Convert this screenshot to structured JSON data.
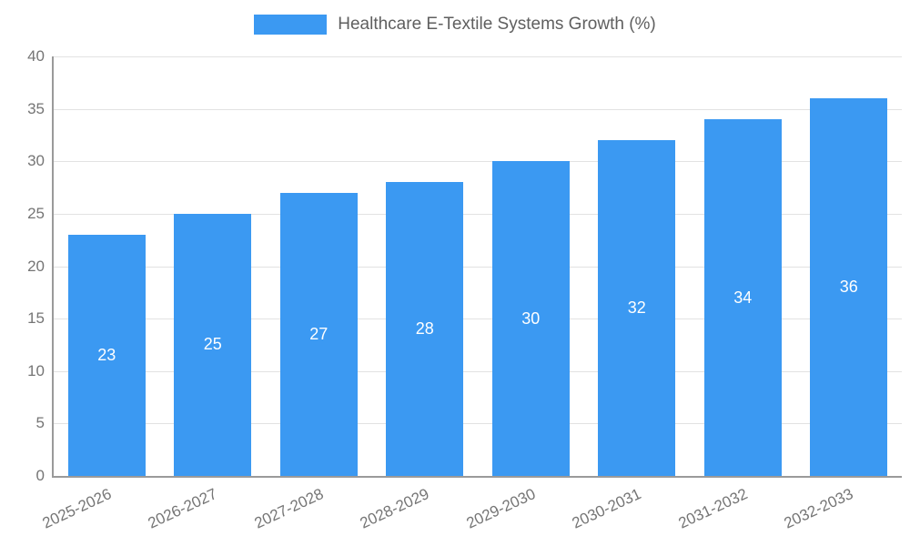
{
  "legend": {
    "title": "Healthcare E-Textile Systems Growth (%)"
  },
  "colors": {
    "bar": "#3b99f2",
    "grid": "#e2e2e2",
    "axis": "#9a9a9a",
    "tick_text": "#757575",
    "title_text": "#5f5f5f",
    "bar_label_text": "#ffffff"
  },
  "chart_data": {
    "type": "bar",
    "title": "Healthcare E-Textile Systems Growth (%)",
    "categories": [
      "2025-2026",
      "2026-2027",
      "2027-2028",
      "2028-2029",
      "2029-2030",
      "2030-2031",
      "2031-2032",
      "2032-2033"
    ],
    "values": [
      23,
      25,
      27,
      28,
      30,
      32,
      34,
      36
    ],
    "xlabel": "",
    "ylabel": "",
    "ylim": [
      0,
      40
    ],
    "ytick_step": 5,
    "ytick_labels": [
      "0",
      "5",
      "10",
      "15",
      "20",
      "25",
      "30",
      "35",
      "40"
    ],
    "grid": true,
    "legend_position": "top",
    "bar_labels_shown": true
  }
}
